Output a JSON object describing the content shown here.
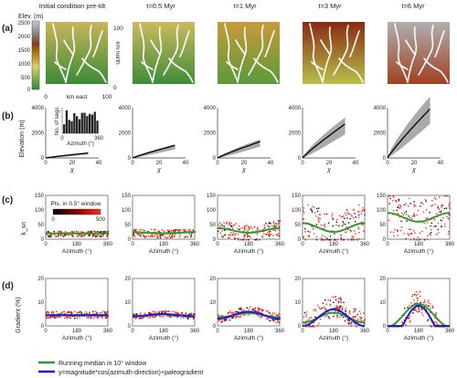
{
  "panels": {
    "a": "(a)",
    "b": "(b)",
    "c": "(c)",
    "d": "(d)"
  },
  "columns": [
    "Initial condition pre-tilt",
    "t=0.5 Myr",
    "t=1 Myr",
    "t=3 Myr",
    "t=6 Myr"
  ],
  "colorbar_elev": {
    "label": "Elev. (m)",
    "ticks": [
      "2500",
      "2000",
      "1500",
      "1000",
      "500",
      "0"
    ],
    "colors": [
      "#c8c8c8",
      "#8c8c8c",
      "#8a3a1a",
      "#b8860b",
      "#e0d070",
      "#7fb04a",
      "#2e8b3a"
    ]
  },
  "map_axes": {
    "ylabel": "km north",
    "xlabel": "km east",
    "y_ticks": [
      "100",
      "0"
    ],
    "x_ticks": [
      "0",
      "100"
    ]
  },
  "map_colors": [
    {
      "top": "#c9b55a",
      "bottom": "#3a8a36"
    },
    {
      "top": "#cdb95e",
      "bottom": "#3e8d38"
    },
    {
      "top": "#c89a3a",
      "bottom": "#5a9a3a"
    },
    {
      "top": "#8a2a12",
      "bottom": "#b8c04a"
    },
    {
      "top": "#b0b0b0",
      "bottom": "#a04020"
    }
  ],
  "row_b": {
    "ylabel": "Elevation (m)",
    "xlabel": "χ",
    "y_ticks": [
      "0",
      "2000",
      "4000"
    ],
    "x_ticks": [
      "0",
      "20",
      "40"
    ],
    "inset": {
      "ylabel": "No. of segs.",
      "xlabel": "Azimuth (°)",
      "x_ticks": [
        "0",
        "360"
      ]
    },
    "top_elev": [
      400,
      1000,
      1300,
      2700,
      3900
    ]
  },
  "row_c": {
    "ylabel": "k_sn",
    "xlabel": "Azimuth (°)",
    "y_ticks": [
      "0",
      "50",
      "100",
      "150"
    ],
    "x_ticks": [
      "0",
      "180",
      "360"
    ],
    "cbar_label": "Pts. in 0.5° window",
    "cbar_ticks": [
      "0",
      "500"
    ],
    "median": [
      {
        "base": 20,
        "amp": 0
      },
      {
        "base": 22,
        "amp": 2
      },
      {
        "base": 30,
        "amp": 8
      },
      {
        "base": 40,
        "amp": 15
      },
      {
        "base": 75,
        "amp": 15
      }
    ]
  },
  "row_d": {
    "ylabel": "Gradient (%)",
    "xlabel": "Azimuth (°)",
    "y_ticks": [
      "0",
      "10",
      "20"
    ],
    "x_ticks": [
      "0",
      "180",
      "360"
    ],
    "model": [
      {
        "mag": 0,
        "c": 4.5
      },
      {
        "mag": 0.5,
        "c": 4.5
      },
      {
        "mag": 1.5,
        "c": 4.5
      },
      {
        "mag": 3.5,
        "c": 3.5
      },
      {
        "mag": 8,
        "c": 0.5
      }
    ]
  },
  "legend": [
    {
      "label": "Running median in 10° window",
      "color": "#2e9a2e"
    },
    {
      "label": "y=magnitude*cos(azimuth-direction)+paleogradient",
      "color": "#1a1ad8"
    }
  ]
}
